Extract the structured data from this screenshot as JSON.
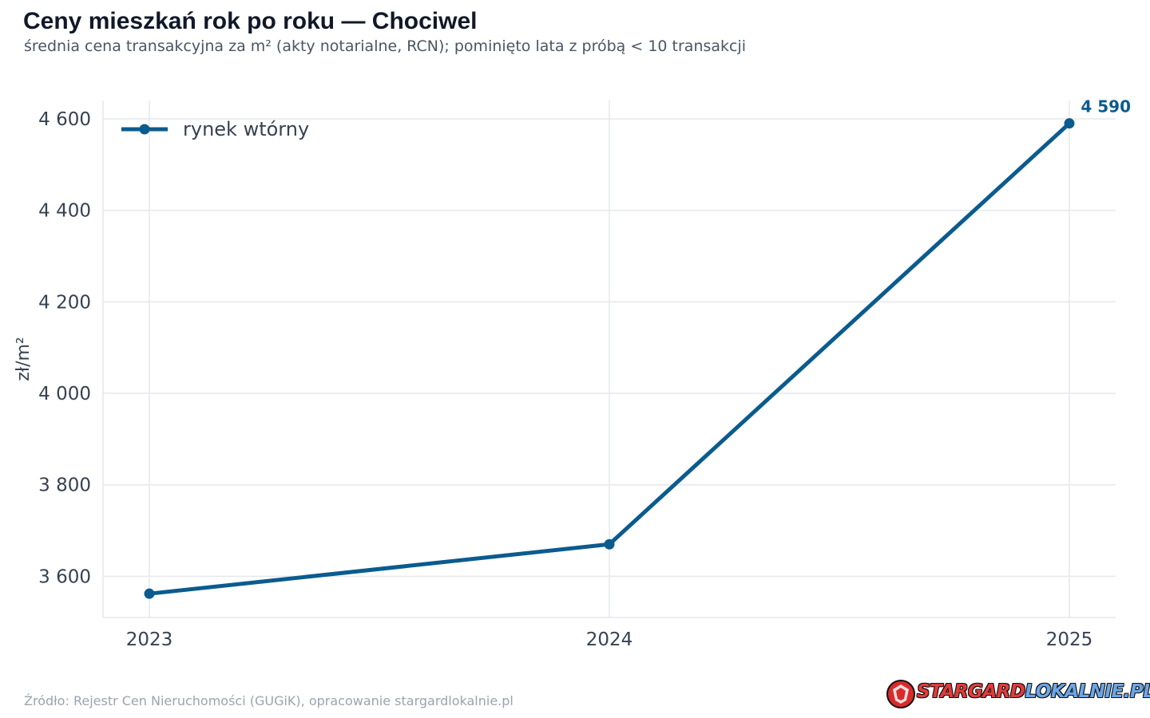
{
  "chart_data": {
    "type": "line",
    "title": "Ceny mieszkań rok po roku — Chociwel",
    "subtitle": "średnia cena transakcyjna za m² (akty notarialne, RCN); pominięto lata z próbą < 10 transakcji",
    "ylabel": "zł/m²",
    "x": [
      "2023",
      "2024",
      "2025"
    ],
    "series": [
      {
        "name": "rynek wtórny",
        "values": [
          3562,
          3670,
          4590
        ],
        "color": "#0b5b8e"
      }
    ],
    "ylim": [
      3510,
      4640
    ],
    "yticks": [
      3600,
      3800,
      4000,
      4200,
      4400,
      4600
    ],
    "ytick_labels": [
      "3 600",
      "3 800",
      "4 000",
      "4 200",
      "4 400",
      "4 600"
    ],
    "end_label": "4 590",
    "legend_position": "top-left",
    "grid": true
  },
  "source": "Źródło: Rejestr Cen Nieruchomości (GUGiK), opracowanie stargardlokalnie.pl",
  "logo": {
    "part1": "STARGARD",
    "part2": "LOKALNIE.PL"
  }
}
